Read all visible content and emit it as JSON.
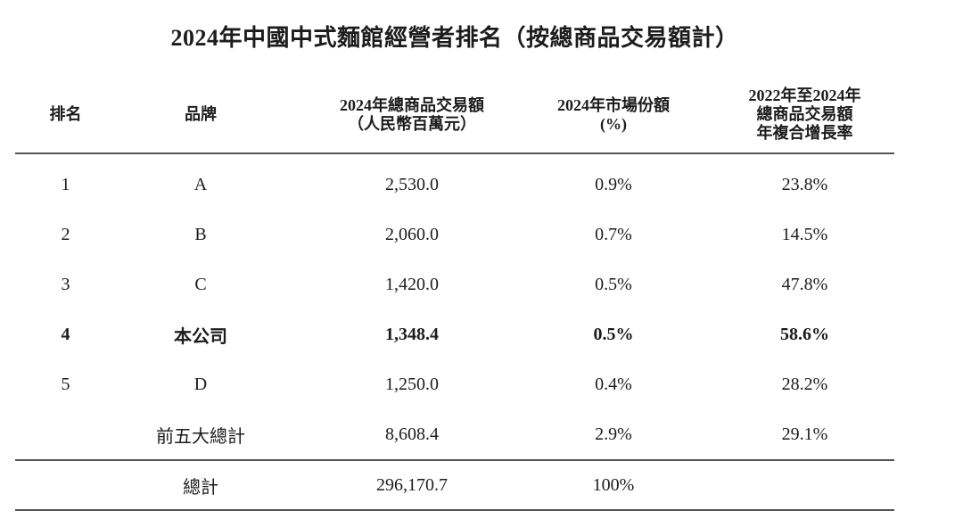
{
  "title": "2024年中國中式麵館經營者排名（按總商品交易額計）",
  "colors": {
    "background": "#ffffff",
    "text": "#1c1c1c",
    "rule": "#555555"
  },
  "header": {
    "rank": "排名",
    "brand": "品牌",
    "gmv_line1": "2024年總商品交易額",
    "gmv_line2": "（人民幣百萬元）",
    "share_line1": "2024年市場份額",
    "share_line2": "(%)",
    "cagr_line1": "2022年至2024年",
    "cagr_line2": "總商品交易額",
    "cagr_line3": "年複合增長率"
  },
  "rows": [
    {
      "rank": "1",
      "brand": "A",
      "gmv": "2,530.0",
      "share": "0.9%",
      "cagr": "23.8%",
      "bold": false
    },
    {
      "rank": "2",
      "brand": "B",
      "gmv": "2,060.0",
      "share": "0.7%",
      "cagr": "14.5%",
      "bold": false
    },
    {
      "rank": "3",
      "brand": "C",
      "gmv": "1,420.0",
      "share": "0.5%",
      "cagr": "47.8%",
      "bold": false
    },
    {
      "rank": "4",
      "brand": "本公司",
      "gmv": "1,348.4",
      "share": "0.5%",
      "cagr": "58.6%",
      "bold": true
    },
    {
      "rank": "5",
      "brand": "D",
      "gmv": "1,250.0",
      "share": "0.4%",
      "cagr": "28.2%",
      "bold": false
    },
    {
      "rank": "",
      "brand": "前五大總計",
      "gmv": "8,608.4",
      "share": "2.9%",
      "cagr": "29.1%",
      "bold": false
    }
  ],
  "total_row": {
    "rank": "",
    "brand": "總計",
    "gmv": "296,170.7",
    "share": "100%",
    "cagr": ""
  }
}
